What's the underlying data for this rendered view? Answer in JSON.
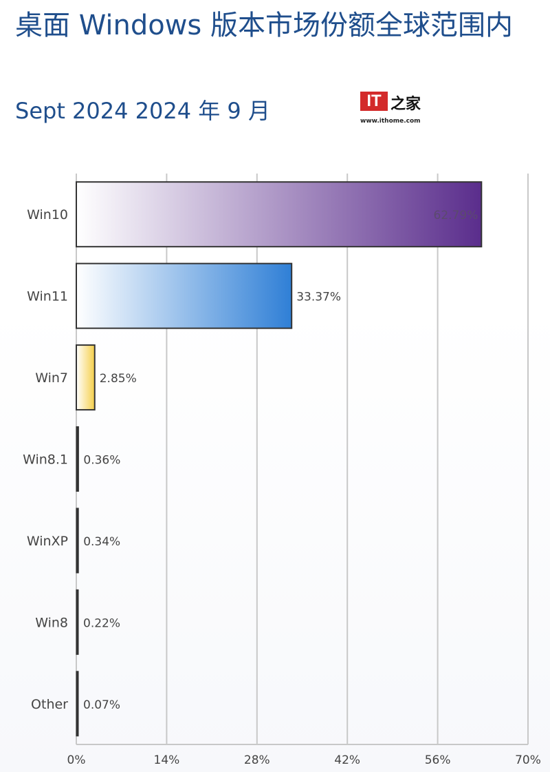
{
  "header": {
    "title": "桌面 Windows 版本市场份额全球范围内",
    "subtitle": "Sept 2024 2024 年 9 月"
  },
  "logo": {
    "text": "IT之家",
    "url": "www.ithome.com"
  },
  "chart_data": {
    "type": "bar",
    "orientation": "horizontal",
    "title": "桌面 Windows 版本市场份额全球范围内",
    "subtitle": "Sept 2024 2024 年 9 月",
    "categories": [
      "Win10",
      "Win11",
      "Win7",
      "Win8.1",
      "WinXP",
      "Win8",
      "Other"
    ],
    "values": [
      62.79,
      33.37,
      2.85,
      0.36,
      0.34,
      0.22,
      0.07
    ],
    "data_labels": [
      "62.79%",
      "33.37%",
      "2.85%",
      "0.36%",
      "0.34%",
      "0.22%",
      "0.07%"
    ],
    "xlim": [
      0,
      70
    ],
    "x_ticks": [
      "0%",
      "14%",
      "28%",
      "42%",
      "56%",
      "70%"
    ],
    "grid": true,
    "colors": {
      "Win10": [
        "#ffffff",
        "#5a2d8c"
      ],
      "Win11": [
        "#ffffff",
        "#2f7fd6"
      ],
      "Win7": [
        "#ffffff",
        "#f5cf4a"
      ],
      "other": "#333333"
    }
  }
}
